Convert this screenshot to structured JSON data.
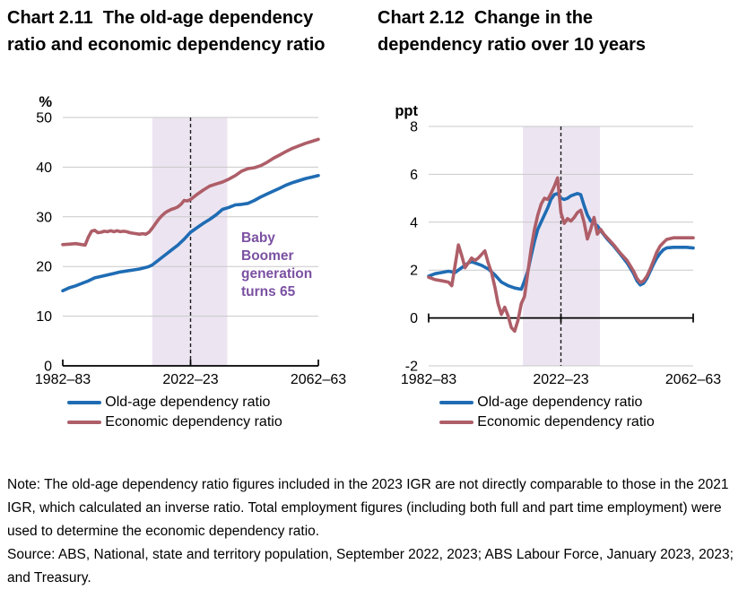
{
  "page": {
    "background": "#ffffff"
  },
  "colors": {
    "blue": "#1F6CB4",
    "red": "#AE5E68",
    "band": "#ECE5F1",
    "annotation": "#7B51A2",
    "gridline": "#C9C9C9",
    "axis": "#000000",
    "dashed": "#1A1A1A"
  },
  "chart_data": [
    {
      "type": "line",
      "title": "Chart 2.11  The old-age dependency ratio and economic dependency ratio",
      "title_lines": [
        "Chart 2.11  The old-age dependency",
        "ratio and economic dependency ratio"
      ],
      "unit": "%",
      "ylabel": "%",
      "xlabel": "",
      "ylim": [
        0,
        50
      ],
      "yticks": [
        0,
        10,
        20,
        30,
        40,
        50
      ],
      "xlim": [
        1982,
        2062
      ],
      "xticks": [
        {
          "x": 1982,
          "label": "1982–83"
        },
        {
          "x": 2022,
          "label": "2022–23"
        },
        {
          "x": 2062,
          "label": "2062–63"
        }
      ],
      "baseline": 0,
      "grid": true,
      "band": {
        "x0": 2010,
        "x1": 2033.5
      },
      "dashed_line_x": 2022,
      "annotation": {
        "text": "Baby Boomer generation turns 65"
      },
      "legend_position": "bottom",
      "series": [
        {
          "name": "Old-age dependency ratio",
          "color": "#1F6CB4",
          "points": [
            [
              1982,
              15.1
            ],
            [
              1984,
              15.7
            ],
            [
              1986,
              16.1
            ],
            [
              1988,
              16.6
            ],
            [
              1990,
              17.1
            ],
            [
              1992,
              17.7
            ],
            [
              1994,
              18.0
            ],
            [
              1996,
              18.3
            ],
            [
              1998,
              18.6
            ],
            [
              2000,
              18.9
            ],
            [
              2002,
              19.1
            ],
            [
              2004,
              19.3
            ],
            [
              2006,
              19.5
            ],
            [
              2008,
              19.8
            ],
            [
              2009,
              20.0
            ],
            [
              2010,
              20.3
            ],
            [
              2012,
              21.3
            ],
            [
              2014,
              22.3
            ],
            [
              2016,
              23.3
            ],
            [
              2018,
              24.3
            ],
            [
              2020,
              25.5
            ],
            [
              2022,
              26.9
            ],
            [
              2024,
              27.8
            ],
            [
              2026,
              28.7
            ],
            [
              2028,
              29.5
            ],
            [
              2030,
              30.4
            ],
            [
              2032,
              31.5
            ],
            [
              2034,
              31.9
            ],
            [
              2036,
              32.4
            ],
            [
              2038,
              32.5
            ],
            [
              2040,
              32.7
            ],
            [
              2042,
              33.3
            ],
            [
              2044,
              34.0
            ],
            [
              2046,
              34.6
            ],
            [
              2048,
              35.2
            ],
            [
              2050,
              35.8
            ],
            [
              2052,
              36.4
            ],
            [
              2054,
              36.9
            ],
            [
              2056,
              37.3
            ],
            [
              2058,
              37.7
            ],
            [
              2060,
              38.0
            ],
            [
              2062,
              38.3
            ]
          ]
        },
        {
          "name": "Economic dependency ratio",
          "color": "#AE5E68",
          "points": [
            [
              1982,
              24.4
            ],
            [
              1984,
              24.5
            ],
            [
              1986,
              24.6
            ],
            [
              1988,
              24.4
            ],
            [
              1989,
              24.3
            ],
            [
              1990,
              25.9
            ],
            [
              1991,
              27.1
            ],
            [
              1992,
              27.3
            ],
            [
              1993,
              26.8
            ],
            [
              1994,
              26.9
            ],
            [
              1995,
              27.1
            ],
            [
              1996,
              27.0
            ],
            [
              1997,
              27.2
            ],
            [
              1998,
              27.0
            ],
            [
              1999,
              27.2
            ],
            [
              2000,
              27.0
            ],
            [
              2001,
              27.1
            ],
            [
              2002,
              27.0
            ],
            [
              2003,
              26.8
            ],
            [
              2004,
              26.7
            ],
            [
              2005,
              26.6
            ],
            [
              2006,
              26.5
            ],
            [
              2007,
              26.6
            ],
            [
              2008,
              26.5
            ],
            [
              2009,
              26.9
            ],
            [
              2010,
              27.7
            ],
            [
              2011,
              28.6
            ],
            [
              2012,
              29.5
            ],
            [
              2013,
              30.2
            ],
            [
              2014,
              30.8
            ],
            [
              2015,
              31.2
            ],
            [
              2016,
              31.5
            ],
            [
              2017,
              31.7
            ],
            [
              2018,
              32.0
            ],
            [
              2019,
              32.5
            ],
            [
              2020,
              33.3
            ],
            [
              2021,
              33.2
            ],
            [
              2022,
              33.5
            ],
            [
              2024,
              34.5
            ],
            [
              2026,
              35.4
            ],
            [
              2028,
              36.2
            ],
            [
              2030,
              36.6
            ],
            [
              2032,
              37.0
            ],
            [
              2034,
              37.6
            ],
            [
              2036,
              38.3
            ],
            [
              2038,
              39.2
            ],
            [
              2040,
              39.7
            ],
            [
              2042,
              39.9
            ],
            [
              2044,
              40.3
            ],
            [
              2046,
              41.0
            ],
            [
              2048,
              41.8
            ],
            [
              2050,
              42.5
            ],
            [
              2052,
              43.2
            ],
            [
              2054,
              43.8
            ],
            [
              2056,
              44.3
            ],
            [
              2058,
              44.8
            ],
            [
              2060,
              45.2
            ],
            [
              2062,
              45.6
            ]
          ]
        }
      ]
    },
    {
      "type": "line",
      "title": "Chart 2.12  Change in the dependency ratio over 10 years",
      "title_lines": [
        "Chart 2.12  Change in the",
        "dependency ratio over 10 years"
      ],
      "unit": "ppt",
      "ylabel": "ppt",
      "xlabel": "",
      "ylim": [
        -2,
        8
      ],
      "yticks": [
        -2,
        0,
        2,
        4,
        6,
        8
      ],
      "xlim": [
        1982,
        2062
      ],
      "xticks": [
        {
          "x": 1982,
          "label": "1982–83"
        },
        {
          "x": 2022,
          "label": "2022–23"
        },
        {
          "x": 2062,
          "label": "2062–63"
        }
      ],
      "baseline": 0,
      "grid": true,
      "band": {
        "x0": 2010.5,
        "x1": 2033.8
      },
      "dashed_line_x": 2022,
      "legend_position": "bottom",
      "series": [
        {
          "name": "Old-age dependency ratio",
          "color": "#1F6CB4",
          "points": [
            [
              1982,
              1.75
            ],
            [
              1984,
              1.85
            ],
            [
              1986,
              1.9
            ],
            [
              1988,
              1.95
            ],
            [
              1990,
              1.9
            ],
            [
              1992,
              2.1
            ],
            [
              1994,
              2.3
            ],
            [
              1995,
              2.35
            ],
            [
              1996,
              2.3
            ],
            [
              1998,
              2.2
            ],
            [
              2000,
              2.05
            ],
            [
              2002,
              1.8
            ],
            [
              2004,
              1.5
            ],
            [
              2006,
              1.35
            ],
            [
              2008,
              1.25
            ],
            [
              2010,
              1.2
            ],
            [
              2011,
              1.55
            ],
            [
              2012,
              1.95
            ],
            [
              2013,
              2.6
            ],
            [
              2014,
              3.2
            ],
            [
              2015,
              3.7
            ],
            [
              2016,
              4.0
            ],
            [
              2017,
              4.3
            ],
            [
              2018,
              4.6
            ],
            [
              2019,
              4.95
            ],
            [
              2020,
              5.15
            ],
            [
              2021,
              5.2
            ],
            [
              2022,
              5.0
            ],
            [
              2023,
              4.95
            ],
            [
              2024,
              5.0
            ],
            [
              2025,
              5.1
            ],
            [
              2026,
              5.15
            ],
            [
              2027,
              5.2
            ],
            [
              2028,
              5.15
            ],
            [
              2029,
              4.7
            ],
            [
              2030,
              4.3
            ],
            [
              2031,
              4.05
            ],
            [
              2032,
              3.95
            ],
            [
              2033,
              3.85
            ],
            [
              2034,
              3.65
            ],
            [
              2036,
              3.3
            ],
            [
              2038,
              3.0
            ],
            [
              2040,
              2.65
            ],
            [
              2042,
              2.3
            ],
            [
              2044,
              1.85
            ],
            [
              2045,
              1.55
            ],
            [
              2046,
              1.38
            ],
            [
              2047,
              1.45
            ],
            [
              2048,
              1.65
            ],
            [
              2049,
              1.95
            ],
            [
              2050,
              2.25
            ],
            [
              2051,
              2.5
            ],
            [
              2052,
              2.7
            ],
            [
              2053,
              2.85
            ],
            [
              2054,
              2.93
            ],
            [
              2056,
              2.95
            ],
            [
              2058,
              2.95
            ],
            [
              2060,
              2.95
            ],
            [
              2062,
              2.92
            ]
          ]
        },
        {
          "name": "Economic dependency ratio",
          "color": "#AE5E68",
          "points": [
            [
              1982,
              1.7
            ],
            [
              1984,
              1.6
            ],
            [
              1986,
              1.55
            ],
            [
              1988,
              1.5
            ],
            [
              1989,
              1.35
            ],
            [
              1990,
              2.2
            ],
            [
              1991,
              3.05
            ],
            [
              1992,
              2.6
            ],
            [
              1993,
              2.1
            ],
            [
              1994,
              2.3
            ],
            [
              1995,
              2.5
            ],
            [
              1996,
              2.4
            ],
            [
              1997,
              2.5
            ],
            [
              1998,
              2.65
            ],
            [
              1999,
              2.8
            ],
            [
              2000,
              2.3
            ],
            [
              2001,
              1.9
            ],
            [
              2002,
              1.3
            ],
            [
              2003,
              0.6
            ],
            [
              2004,
              0.15
            ],
            [
              2005,
              0.45
            ],
            [
              2006,
              0.1
            ],
            [
              2007,
              -0.4
            ],
            [
              2008,
              -0.55
            ],
            [
              2009,
              -0.1
            ],
            [
              2010,
              0.6
            ],
            [
              2011,
              0.9
            ],
            [
              2012,
              1.9
            ],
            [
              2013,
              2.9
            ],
            [
              2014,
              3.7
            ],
            [
              2015,
              4.3
            ],
            [
              2016,
              4.75
            ],
            [
              2017,
              5.0
            ],
            [
              2018,
              4.95
            ],
            [
              2019,
              5.2
            ],
            [
              2020,
              5.5
            ],
            [
              2021,
              5.85
            ],
            [
              2022,
              4.4
            ],
            [
              2023,
              3.95
            ],
            [
              2024,
              4.15
            ],
            [
              2025,
              4.05
            ],
            [
              2026,
              4.2
            ],
            [
              2027,
              4.4
            ],
            [
              2028,
              4.5
            ],
            [
              2029,
              4.0
            ],
            [
              2030,
              3.3
            ],
            [
              2031,
              3.7
            ],
            [
              2032,
              4.2
            ],
            [
              2033,
              3.5
            ],
            [
              2034,
              3.7
            ],
            [
              2035,
              3.5
            ],
            [
              2036,
              3.35
            ],
            [
              2038,
              3.05
            ],
            [
              2040,
              2.7
            ],
            [
              2042,
              2.4
            ],
            [
              2044,
              1.95
            ],
            [
              2045,
              1.65
            ],
            [
              2046,
              1.48
            ],
            [
              2047,
              1.55
            ],
            [
              2048,
              1.75
            ],
            [
              2049,
              2.05
            ],
            [
              2050,
              2.4
            ],
            [
              2051,
              2.75
            ],
            [
              2052,
              3.0
            ],
            [
              2053,
              3.15
            ],
            [
              2054,
              3.28
            ],
            [
              2056,
              3.35
            ],
            [
              2058,
              3.35
            ],
            [
              2060,
              3.35
            ],
            [
              2062,
              3.35
            ]
          ]
        }
      ]
    }
  ],
  "footer": {
    "note": "Note: The old-age dependency ratio figures included in the 2023 IGR are not directly comparable to those in the 2021 IGR, which calculated an inverse ratio. Total employment figures (including both full and part time employment) were used to determine the economic dependency ratio.",
    "source": "Source: ABS, National, state and territory population, September 2022, 2023; ABS Labour Force, January 2023, 2023; and Treasury."
  }
}
